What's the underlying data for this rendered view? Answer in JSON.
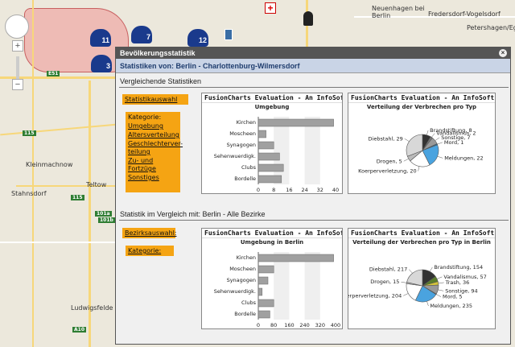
{
  "map": {
    "labels": [
      "Neuenhagen bei Berlin",
      "Fredersdorf-Vogelsdorf",
      "Petershagen/Eggersdorf",
      "Kleinmachnow",
      "Stahnsdorf",
      "Teltow",
      "Ludwigsfelde"
    ],
    "shields": [
      "E51",
      "115",
      "115",
      "101a",
      "101b",
      "A10"
    ],
    "markers": [
      "11",
      "7",
      "12",
      "3"
    ]
  },
  "window": {
    "title": "Bevölkerungsstatistik",
    "close": "×",
    "subtitle": "Statistiken von: Berlin - Charlottenburg-Wilmersdorf",
    "section1": "Vergleichende Statistiken",
    "section2": "Statistik im Vergleich mit: Berlin - Alle Bezirke",
    "btn_statistik": "Statistikauswahl",
    "btn_bezirk": "Bezirksauswahl:",
    "btn_kategorie": "Kategorie:",
    "nav": [
      "Kategorie:",
      "Umgebung",
      "Altersverteilung",
      "Geschlechterver-\nteilung",
      "Zu- und Fortzüge",
      "Sonstiges"
    ]
  },
  "colors": {
    "accent": "#f5a413",
    "subtitle_bg": "#c9d4e6"
  },
  "chart_data": [
    {
      "type": "bar",
      "orientation": "horizontal",
      "header": "FusionCharts Evaluation - An InfoSoft Glo",
      "title": "Umgebung",
      "categories": [
        "Kirchen",
        "Moscheen",
        "Synagogen",
        "Sehenwuerdigk.",
        "Clubs",
        "Bordelle"
      ],
      "values": [
        39,
        4,
        8,
        11,
        13,
        12
      ],
      "xlim": [
        0,
        40
      ],
      "ticks": [
        "0",
        "8",
        "16",
        "24",
        "32",
        "40"
      ]
    },
    {
      "type": "pie",
      "header": "FusionCharts Evaluation - An InfoSoft Glo",
      "title": "Verteilung der Verbrechen pro Typ",
      "slices": [
        {
          "label": "Brandstiftung, 8",
          "value": 8,
          "color": "#333333"
        },
        {
          "label": "Vandalismus, 2",
          "value": 2,
          "color": "#777777"
        },
        {
          "label": "Sonstige, 7",
          "value": 7,
          "color": "#999999"
        },
        {
          "label": "Mord, 1",
          "value": 1,
          "color": "#1f77b4"
        },
        {
          "label": "Meldungen, 22",
          "value": 22,
          "color": "#4aa3df"
        },
        {
          "label": "Koerperverletzung, 20",
          "value": 20,
          "color": "#ffffff"
        },
        {
          "label": "Drogen, 5",
          "value": 5,
          "color": "#bbbbbb"
        },
        {
          "label": "Diebstahl, 29",
          "value": 29,
          "color": "#d8d8d8"
        }
      ]
    },
    {
      "type": "bar",
      "orientation": "horizontal",
      "header": "FusionCharts Evaluation - An InfoSoft Glo",
      "title": "Umgebung in Berlin",
      "categories": [
        "Kirchen",
        "Moscheen",
        "Synagogen",
        "Sehenwuerdigk.",
        "Clubs",
        "Bordelle"
      ],
      "values": [
        390,
        80,
        50,
        20,
        80,
        60
      ],
      "xlim": [
        0,
        400
      ],
      "ticks": [
        "0",
        "80",
        "160",
        "240",
        "320",
        "400"
      ]
    },
    {
      "type": "pie",
      "header": "FusionCharts Evaluation - An InfoSoft Glo",
      "title": "Verteilung der Verbrechen pro Typ in Berlin",
      "slices": [
        {
          "label": "Brandstiftung, 154",
          "value": 154,
          "color": "#333333"
        },
        {
          "label": "Vandalismus, 57",
          "value": 57,
          "color": "#5a7d2a"
        },
        {
          "label": "Trash, 36",
          "value": 36,
          "color": "#d4c43a"
        },
        {
          "label": "Sonstige, 94",
          "value": 94,
          "color": "#999999"
        },
        {
          "label": "Mord, 5",
          "value": 5,
          "color": "#1f77b4"
        },
        {
          "label": "Meldungen, 235",
          "value": 235,
          "color": "#4aa3df"
        },
        {
          "label": "Koerperverletzung, 204",
          "value": 204,
          "color": "#ffffff"
        },
        {
          "label": "Drogen, 15",
          "value": 15,
          "color": "#bbbbbb"
        },
        {
          "label": "Diebstahl, 217",
          "value": 217,
          "color": "#d8d8d8"
        }
      ]
    }
  ]
}
